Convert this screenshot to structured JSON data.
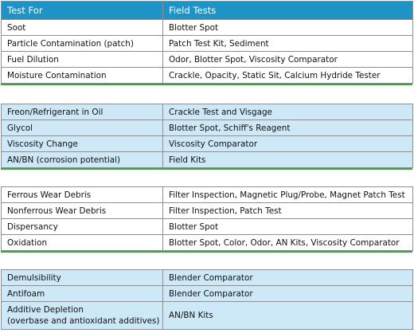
{
  "header": {
    "col1": "Test For",
    "col2": "Field Tests"
  },
  "groups": [
    [
      {
        "test": "Soot",
        "field": "Blotter Spot"
      },
      {
        "test": "Particle Contamination (patch)",
        "field": "Patch Test Kit, Sediment"
      },
      {
        "test": "Fuel Dilution",
        "field": "Odor, Blotter Spot, Viscosity Comparator"
      },
      {
        "test": "Moisture Contamination",
        "field": "Crackle, Opacity, Static Sit, Calcium Hydride Tester"
      }
    ],
    [
      {
        "test": "Freon/Refrigerant in Oil",
        "field": "Crackle Test and Visgage"
      },
      {
        "test": "Glycol",
        "field": "Blotter Spot, Schiff's Reagent"
      },
      {
        "test": "Viscosity Change",
        "field": "Viscosity Comparator"
      },
      {
        "test": "AN/BN (corrosion potential)",
        "field": "Field Kits"
      }
    ],
    [
      {
        "test": "Ferrous Wear Debris",
        "field": "Filter Inspection, Magnetic Plug/Probe, Magnet Patch Test"
      },
      {
        "test": "Nonferrous Wear Debris",
        "field": "Filter Inspection, Patch Test"
      },
      {
        "test": "Dispersancy",
        "field": "Blotter Spot"
      },
      {
        "test": "Oxidation",
        "field": "Blotter Spot, Color, Odor, AN Kits, Viscosity Comparator"
      }
    ],
    [
      {
        "test": "Demulsibility",
        "field": "Blender Comparator"
      },
      {
        "test": "Antifoam",
        "field": "Blender Comparator"
      },
      {
        "test": "Additive Depletion",
        "test_line2": "(overbase and antioxidant additives)",
        "field": "AN/BN Kits"
      }
    ]
  ],
  "colors": {
    "header_blue": "#1e93c6",
    "row_light_blue": "#cde8f6",
    "group_rule_green": "#3ea53a"
  }
}
